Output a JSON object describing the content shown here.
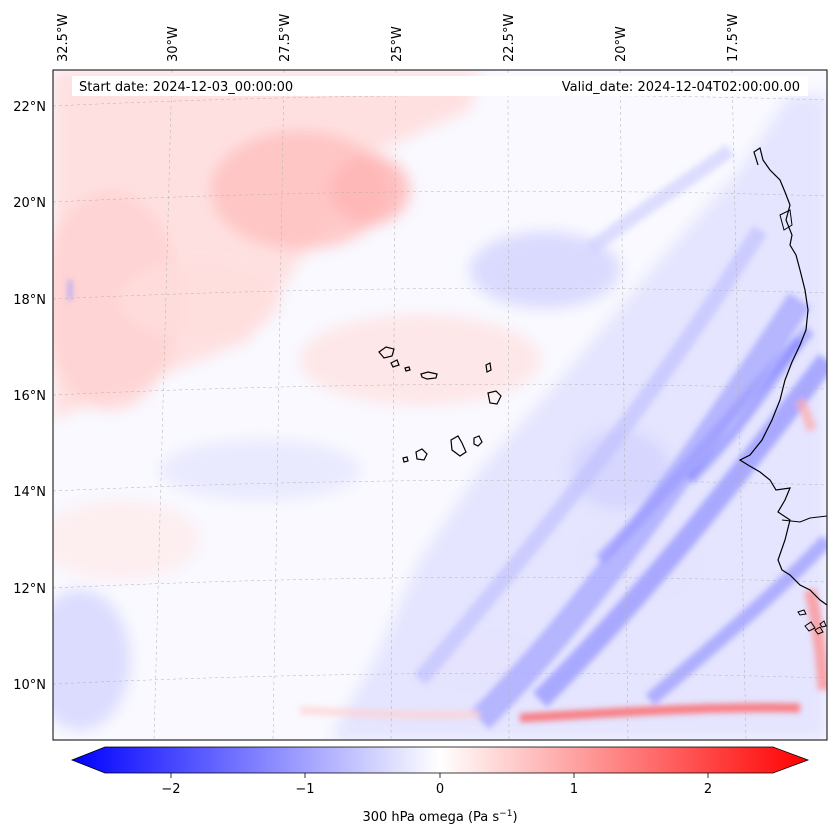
{
  "map": {
    "info": {
      "start_date": "Start date: 2024-12-03_00:00:00",
      "valid_date": "Valid_date: 2024-12-04T02:00:00.00"
    },
    "longitude_labels": [
      "32.5°W",
      "30°W",
      "27.5°W",
      "25°W",
      "22.5°W",
      "20°W",
      "17.5°W"
    ],
    "latitude_labels": [
      "22°N",
      "20°N",
      "18°N",
      "16°N",
      "14°N",
      "12°N",
      "10°N"
    ],
    "colorbar": {
      "ticks": [
        "−2",
        "−1",
        "0",
        "1",
        "2"
      ],
      "label": "300 hPa omega (Pa s",
      "label_unit_power": "−1",
      "label_close": ")",
      "vmin": -2.7,
      "vmax": 2.7,
      "colors": {
        "negative": "#0000ff",
        "zero": "#ffffff",
        "positive": "#ff0000"
      }
    }
  },
  "chart_data": {
    "type": "heatmap",
    "field": "300 hPa omega",
    "units": "Pa s^-1",
    "lon_range": [
      -32.6,
      -15.3
    ],
    "lat_range": [
      8.8,
      22.8
    ],
    "value_range": [
      -2.7,
      2.7
    ],
    "features": [
      {
        "name": "Cape Verde islands",
        "lon": -24.0,
        "lat": 15.8
      },
      {
        "name": "West African coast",
        "lon": -16.5,
        "lat": 14.7
      }
    ]
  }
}
